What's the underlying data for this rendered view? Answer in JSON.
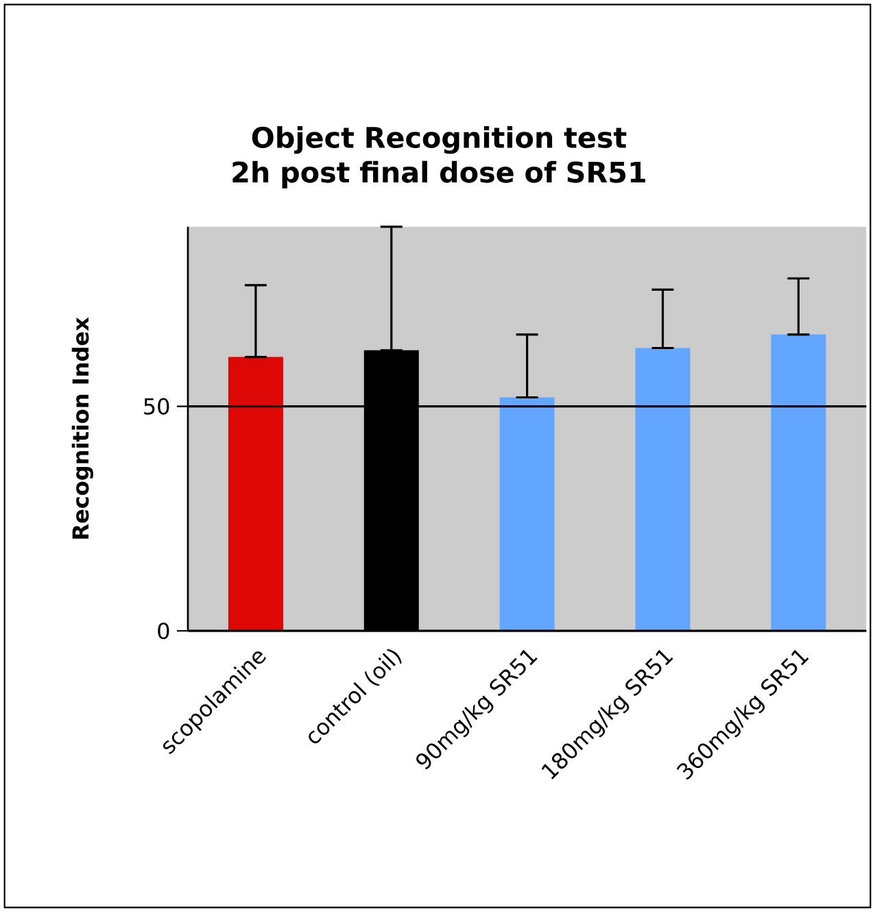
{
  "chart_data": {
    "type": "bar",
    "title": "Object Recognition test 2h post final dose of SR51",
    "ylabel": "Recognition Index",
    "categories": [
      "scopolamine",
      "control (oil)",
      "90mg/kg SR51",
      "180mg/kg SR51",
      "360mg/kg SR51"
    ],
    "values": [
      61,
      62.5,
      52,
      63,
      66
    ],
    "colors": [
      "#dd0806",
      "#000000",
      "#63a6ff",
      "#63a6ff",
      "#63a6ff"
    ],
    "errors": [
      [
        61,
        77
      ],
      [
        62.5,
        90
      ],
      [
        52,
        66
      ],
      [
        63,
        76
      ],
      [
        66,
        78.5
      ]
    ],
    "ylim": [
      0,
      90
    ],
    "yticks": [
      0,
      50
    ],
    "grid": "y"
  }
}
